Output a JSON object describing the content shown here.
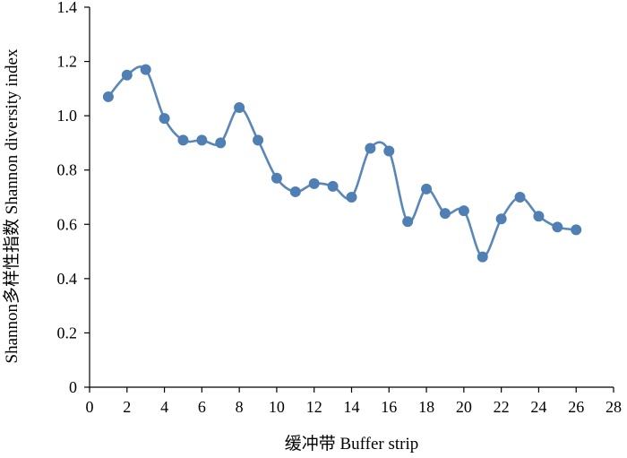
{
  "chart_data": {
    "type": "line",
    "title": "",
    "xlabel": "缓冲带 Buffer strip",
    "ylabel": "Shannon多样性指数 Shannon diversity index",
    "xlim": [
      0,
      28
    ],
    "ylim": [
      0,
      1.4
    ],
    "xticks": [
      0,
      2,
      4,
      6,
      8,
      10,
      12,
      14,
      16,
      18,
      20,
      22,
      24,
      26,
      28
    ],
    "yticks": [
      0,
      0.2,
      0.4,
      0.6,
      0.8,
      1.0,
      1.2,
      1.4
    ],
    "xtick_labels": [
      "0",
      "2",
      "4",
      "6",
      "8",
      "10",
      "12",
      "14",
      "16",
      "18",
      "20",
      "22",
      "24",
      "26",
      "28"
    ],
    "ytick_labels": [
      "0",
      "0.2",
      "0.4",
      "0.6",
      "0.8",
      "1.0",
      "1.2",
      "1.4"
    ],
    "grid": false,
    "smooth": true,
    "colors": {
      "line": "#5b87b8",
      "marker": "#4f7fb3"
    },
    "series": [
      {
        "x": [
          1,
          2,
          3,
          4,
          5,
          6,
          7,
          8,
          9,
          10,
          11,
          12,
          13,
          14,
          15,
          16,
          17,
          18,
          19,
          20,
          21,
          22,
          23,
          24,
          25,
          26
        ],
        "values": [
          1.07,
          1.15,
          1.17,
          0.99,
          0.91,
          0.91,
          0.9,
          1.03,
          0.91,
          0.77,
          0.72,
          0.75,
          0.74,
          0.7,
          0.88,
          0.87,
          0.61,
          0.73,
          0.64,
          0.65,
          0.48,
          0.62,
          0.7,
          0.63,
          0.59,
          0.58
        ]
      }
    ]
  }
}
